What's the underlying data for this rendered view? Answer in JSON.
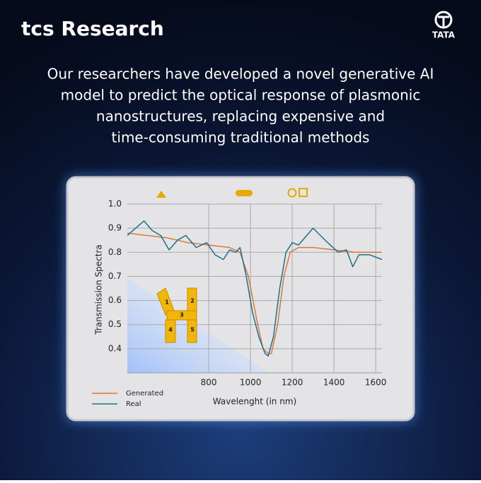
{
  "brand": "tcs Research",
  "partner": "TATA",
  "heading": [
    "Our researchers have developed a novel generative AI",
    "model to predict the optical response of plasmonic",
    "nanostructures, replacing expensive and",
    "time-consuming traditional methods"
  ],
  "structure_labels": [
    "1",
    "2",
    "3",
    "4",
    "5"
  ],
  "chart_data": {
    "type": "line",
    "xlabel": "Wavelenght (in nm)",
    "ylabel": "Transmission Spectra",
    "xlim": [
      410,
      1630
    ],
    "ylim": [
      0.3,
      1.0
    ],
    "xticks": [
      800,
      1000,
      1200,
      1400,
      1600
    ],
    "yticks": [
      0.4,
      0.5,
      0.6,
      0.7,
      0.8,
      0.9,
      {
        "value": 1.0,
        "label": "1.0"
      }
    ],
    "grid": true,
    "series": [
      {
        "name": "Generated",
        "color": "#d9783a",
        "x": [
          410,
          500,
          600,
          700,
          800,
          900,
          950,
          990,
          1030,
          1060,
          1085,
          1100,
          1130,
          1160,
          1190,
          1230,
          1300,
          1400,
          1500,
          1630
        ],
        "values": [
          0.88,
          0.87,
          0.86,
          0.84,
          0.83,
          0.82,
          0.8,
          0.7,
          0.52,
          0.4,
          0.38,
          0.38,
          0.5,
          0.7,
          0.8,
          0.82,
          0.82,
          0.81,
          0.8,
          0.8
        ]
      },
      {
        "name": "Real",
        "color": "#1f6f8b",
        "x": [
          410,
          450,
          490,
          530,
          570,
          610,
          650,
          690,
          740,
          790,
          830,
          870,
          900,
          930,
          950,
          980,
          1010,
          1040,
          1070,
          1085,
          1110,
          1140,
          1170,
          1200,
          1230,
          1260,
          1300,
          1370,
          1420,
          1460,
          1490,
          1520,
          1570,
          1630
        ],
        "values": [
          0.87,
          0.9,
          0.93,
          0.89,
          0.87,
          0.81,
          0.85,
          0.87,
          0.82,
          0.84,
          0.79,
          0.77,
          0.81,
          0.8,
          0.82,
          0.7,
          0.55,
          0.45,
          0.38,
          0.37,
          0.45,
          0.65,
          0.8,
          0.84,
          0.83,
          0.86,
          0.9,
          0.84,
          0.8,
          0.81,
          0.74,
          0.79,
          0.79,
          0.77
        ]
      }
    ]
  }
}
